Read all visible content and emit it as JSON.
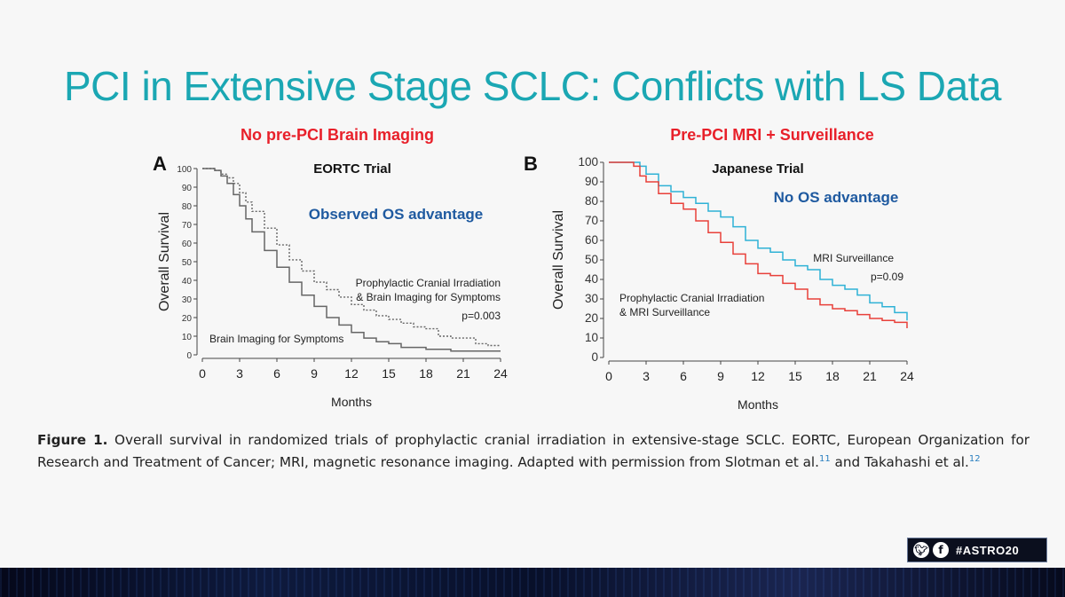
{
  "slide": {
    "title": "PCI in Extensive Stage SCLC: Conflicts with LS Data",
    "hashtag": "#ASTRO20",
    "icons": [
      "twitter-icon",
      "facebook-icon"
    ],
    "colors": {
      "title": "#1ba7b3",
      "heading": "#e8202a",
      "annotation": "#1f5aa0"
    }
  },
  "caption": {
    "label": "Figure 1.",
    "text": "Overall survival in randomized trials of prophylactic cranial irradiation in extensive-stage SCLC. EORTC, European Organization for Research and Treatment of Cancer; MRI, magnetic resonance imaging. Adapted with permission from Slotman et al.",
    "ref1": "11",
    "and_text": "and Takahashi et al.",
    "ref2": "12"
  },
  "chart_data": [
    {
      "type": "line",
      "panel_letter": "A",
      "heading": "No pre-PCI Brain Imaging",
      "title": "EORTC Trial",
      "annotation": "Observed OS advantage",
      "xlabel": "Months",
      "ylabel": "Overall Survival",
      "xlim": [
        0,
        24
      ],
      "ylim": [
        0,
        100
      ],
      "xticks": [
        0,
        3,
        6,
        9,
        12,
        15,
        18,
        21,
        24
      ],
      "yticks": [
        0,
        10,
        20,
        30,
        40,
        50,
        60,
        70,
        80,
        90,
        100
      ],
      "pvalue": "p=0.003",
      "series": [
        {
          "name": "Prophylactic Cranial Irradiation & Brain Imaging for Symptoms",
          "label_lines": [
            "Prophylactic Cranial Irradiation",
            "& Brain Imaging for Symptoms"
          ],
          "style": "dotted",
          "color": "#666666",
          "x": [
            0,
            1,
            1.5,
            2,
            2.5,
            3,
            3.5,
            4,
            5,
            6,
            7,
            8,
            9,
            10,
            11,
            12,
            13,
            14,
            15,
            16,
            17,
            18,
            19,
            20,
            21,
            22,
            23,
            24
          ],
          "y": [
            100,
            99,
            97,
            95,
            92,
            87,
            82,
            77,
            68,
            59,
            51,
            45,
            39,
            35,
            31,
            27,
            24,
            21,
            19,
            17,
            15,
            14,
            10,
            9,
            9,
            6,
            5,
            5
          ]
        },
        {
          "name": "Brain Imaging for Symptoms",
          "label_lines": [
            "Brain Imaging for Symptoms"
          ],
          "style": "solid",
          "color": "#666666",
          "x": [
            0,
            1,
            1.5,
            2,
            2.5,
            3,
            3.5,
            4,
            5,
            6,
            7,
            8,
            9,
            10,
            11,
            12,
            13,
            14,
            15,
            16,
            18,
            20,
            22,
            24
          ],
          "y": [
            100,
            99,
            96,
            92,
            86,
            80,
            73,
            66,
            56,
            47,
            39,
            32,
            26,
            20,
            16,
            12,
            9,
            7,
            6,
            4,
            3,
            2,
            2,
            2
          ]
        }
      ]
    },
    {
      "type": "line",
      "panel_letter": "B",
      "heading": "Pre-PCI MRI + Surveillance",
      "title": "Japanese Trial",
      "annotation": "No OS advantage",
      "xlabel": "Months",
      "ylabel": "Overall Survival",
      "xlim": [
        0,
        24
      ],
      "ylim": [
        0,
        100
      ],
      "xticks": [
        0,
        3,
        6,
        9,
        12,
        15,
        18,
        21,
        24
      ],
      "yticks": [
        0,
        10,
        20,
        30,
        40,
        50,
        60,
        70,
        80,
        90,
        100
      ],
      "pvalue": "p=0.09",
      "series": [
        {
          "name": "MRI Surveillance",
          "label_lines": [
            "MRI Surveillance"
          ],
          "style": "solid",
          "color": "#2fb2d6",
          "x": [
            0,
            1,
            2,
            2.5,
            3,
            4,
            5,
            6,
            7,
            8,
            9,
            10,
            11,
            12,
            13,
            14,
            15,
            16,
            17,
            18,
            19,
            20,
            21,
            22,
            23,
            24
          ],
          "y": [
            100,
            100,
            100,
            98,
            94,
            88,
            85,
            82,
            79,
            75,
            72,
            67,
            60,
            56,
            54,
            50,
            47,
            45,
            40,
            37,
            35,
            32,
            28,
            26,
            23,
            19
          ]
        },
        {
          "name": "Prophylactic Cranial Irradiation & MRI Surveillance",
          "label_lines": [
            "Prophylactic Cranial Irradiation",
            "& MRI Surveillance"
          ],
          "style": "solid",
          "color": "#e8403a",
          "x": [
            0,
            1,
            2,
            2.5,
            3,
            4,
            5,
            6,
            7,
            8,
            9,
            10,
            11,
            12,
            13,
            14,
            15,
            16,
            17,
            18,
            19,
            20,
            21,
            22,
            23,
            24
          ],
          "y": [
            100,
            100,
            98,
            93,
            90,
            84,
            79,
            76,
            70,
            64,
            59,
            53,
            48,
            43,
            42,
            38,
            35,
            30,
            27,
            25,
            24,
            22,
            20,
            19,
            18,
            15
          ]
        }
      ]
    }
  ]
}
